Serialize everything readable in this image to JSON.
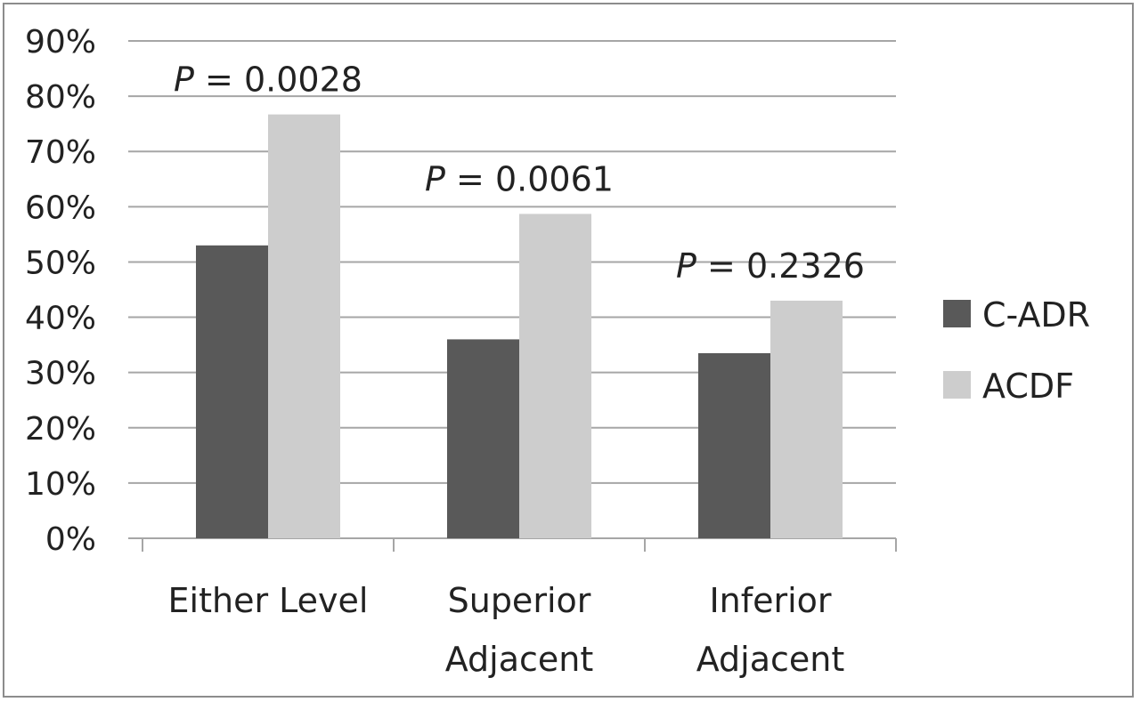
{
  "chart_data": {
    "type": "bar",
    "categories": [
      [
        "Either Level"
      ],
      [
        "Superior",
        "Adjacent"
      ],
      [
        "Inferior",
        "Adjacent"
      ]
    ],
    "series": [
      {
        "name": "C-ADR",
        "color": "#595959",
        "values": [
          53,
          36,
          33.5
        ]
      },
      {
        "name": "ACDF",
        "color": "#cdcdcd",
        "values": [
          76.7,
          58.7,
          43
        ]
      }
    ],
    "annotations": [
      {
        "category_index": 0,
        "p_letter": "P",
        "text": " = 0.0028"
      },
      {
        "category_index": 1,
        "p_letter": "P",
        "text": " = 0.0061"
      },
      {
        "category_index": 2,
        "p_letter": "P",
        "text": " = 0.2326"
      }
    ],
    "yticks": [
      "0%",
      "10%",
      "20%",
      "30%",
      "40%",
      "50%",
      "60%",
      "70%",
      "80%",
      "90%"
    ],
    "ylim": [
      0,
      90
    ],
    "ystep": 10,
    "grid": true,
    "legend_position": "right",
    "gridline_color": "#a6a6a6",
    "axis_color": "#a6a6a6"
  }
}
